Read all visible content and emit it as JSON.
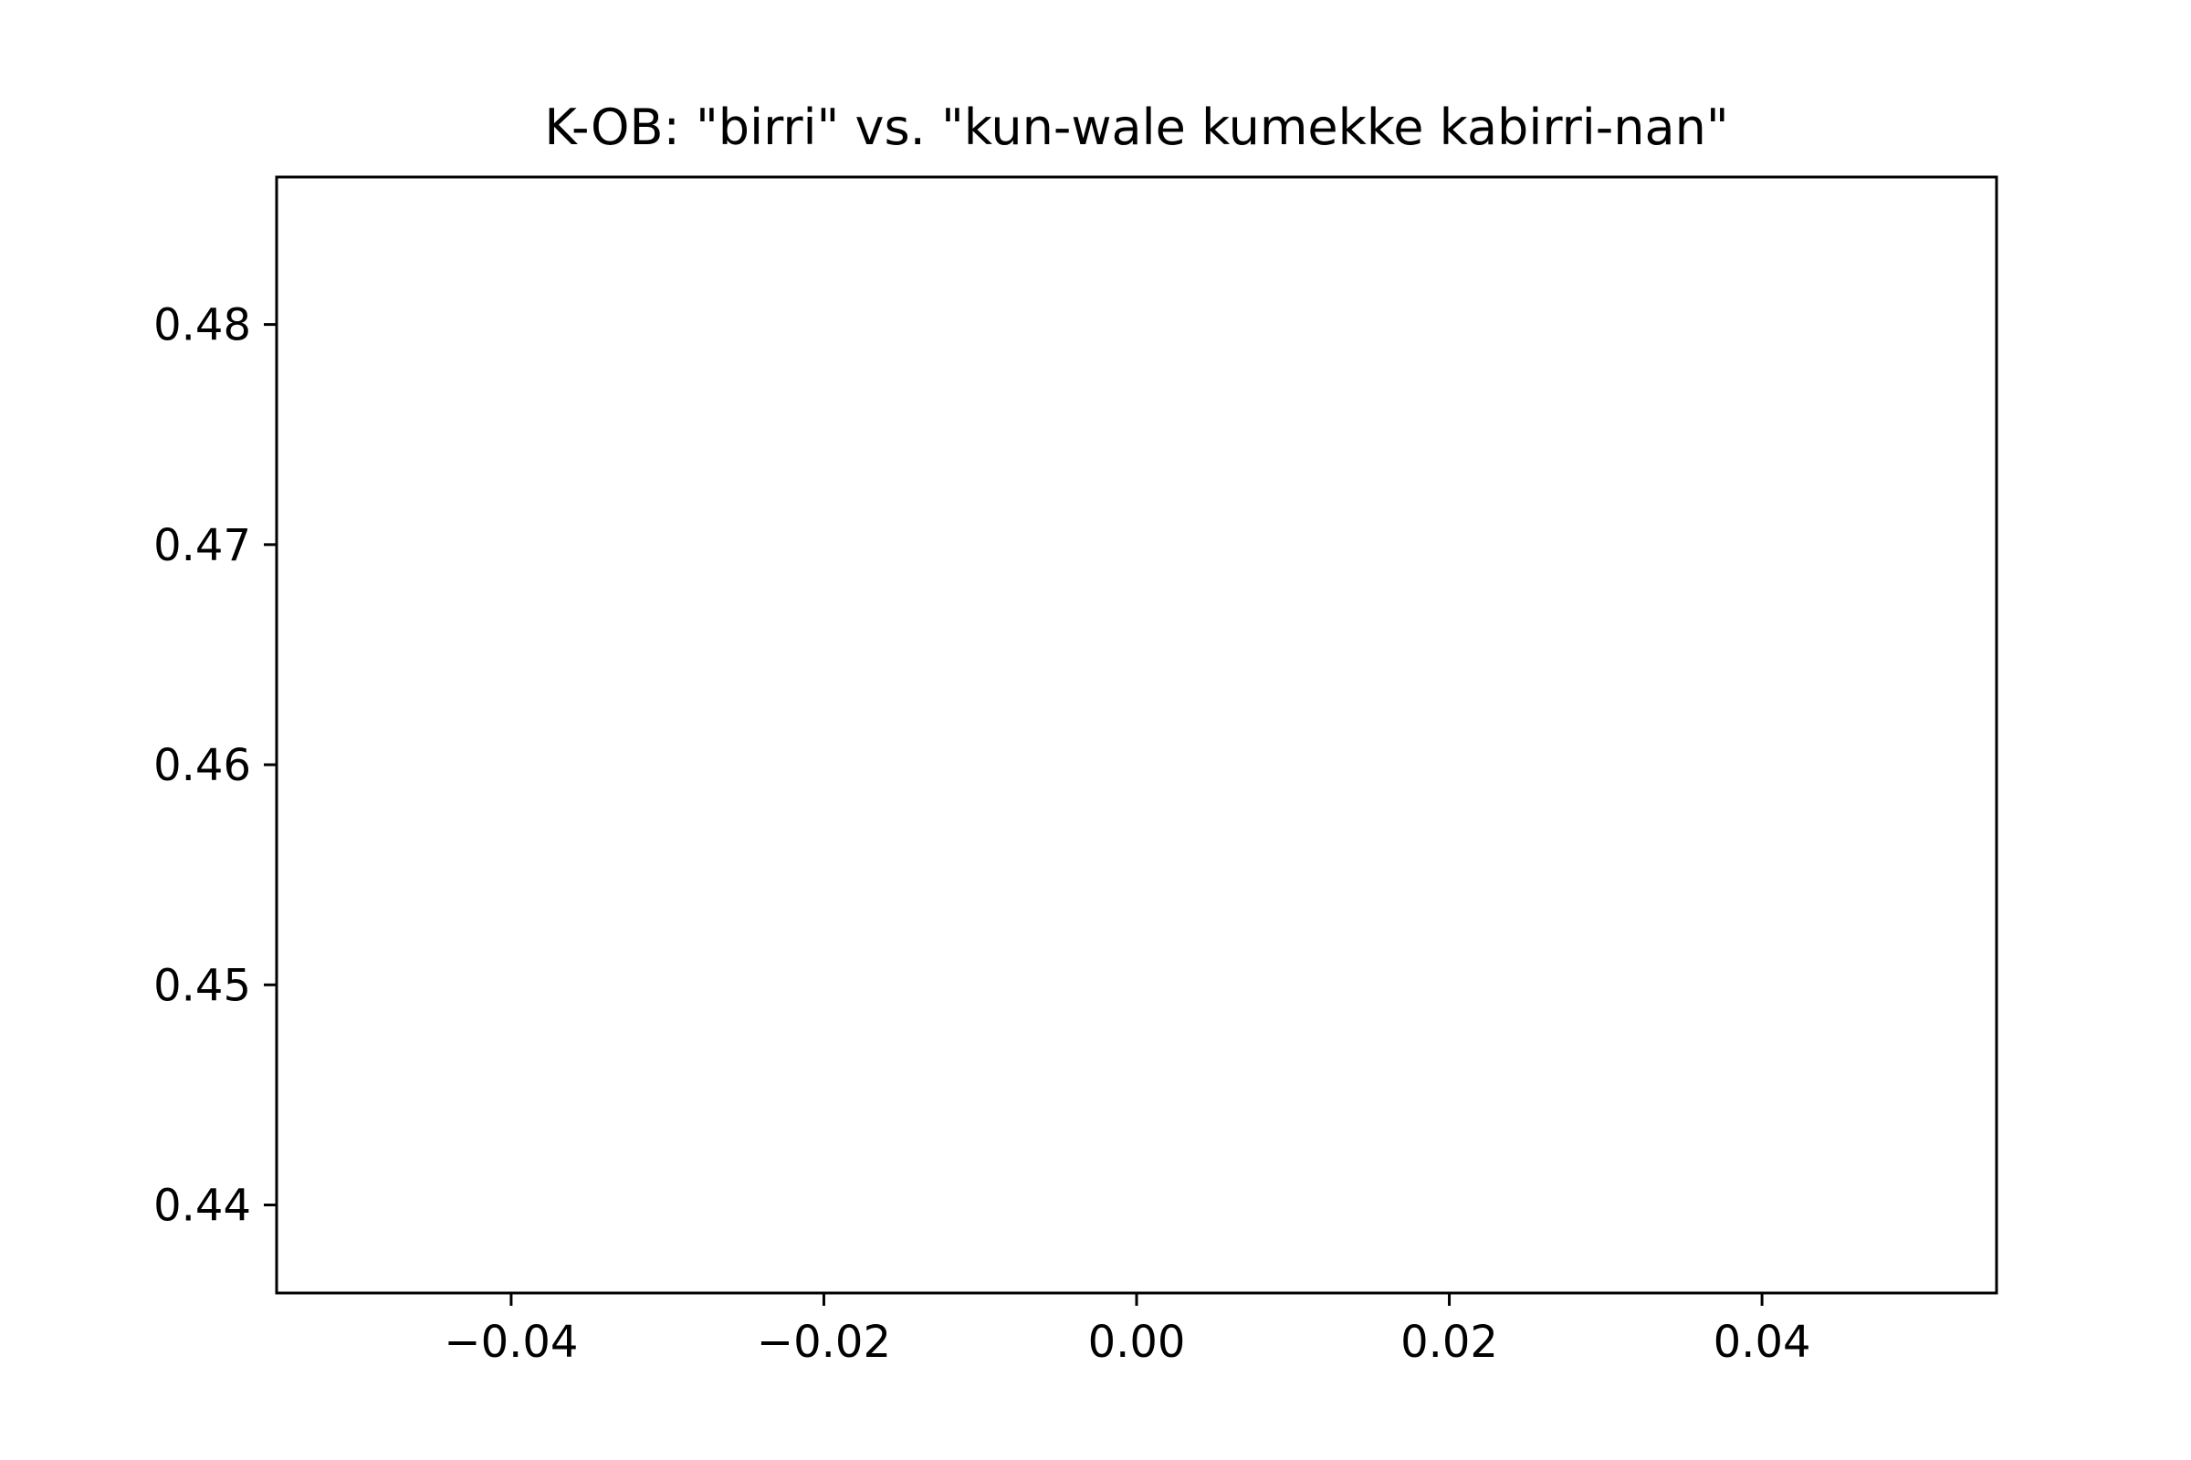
{
  "chart_data": {
    "type": "line",
    "title": "K-OB: \"birri\" vs. \"kun-wale kumekke kabirri-nan\"",
    "xlabel": "",
    "ylabel": "",
    "xlim": [
      -0.055,
      0.055
    ],
    "ylim": [
      0.436,
      0.4867
    ],
    "x_ticks": [
      -0.04,
      -0.02,
      0.0,
      0.02,
      0.04
    ],
    "x_tick_labels": [
      "−0.04",
      "−0.02",
      "0.00",
      "0.02",
      "0.04"
    ],
    "y_ticks": [
      0.44,
      0.45,
      0.46,
      0.47,
      0.48
    ],
    "y_tick_labels": [
      "0.44",
      "0.45",
      "0.46",
      "0.47",
      "0.48"
    ],
    "grid": false,
    "series": []
  }
}
